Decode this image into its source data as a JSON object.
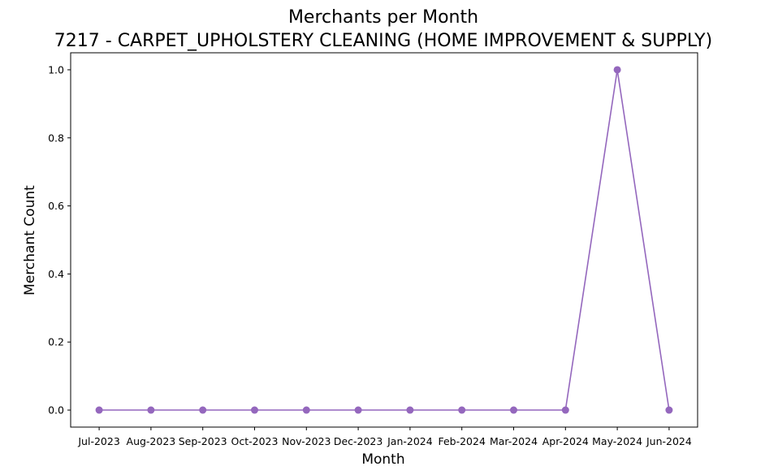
{
  "chart_data": {
    "type": "line",
    "title": "Merchants per Month",
    "subtitle": "7217 - CARPET_UPHOLSTERY CLEANING (HOME IMPROVEMENT & SUPPLY)",
    "xlabel": "Month",
    "ylabel": "Merchant Count",
    "categories": [
      "Jul-2023",
      "Aug-2023",
      "Sep-2023",
      "Oct-2023",
      "Nov-2023",
      "Dec-2023",
      "Jan-2024",
      "Feb-2024",
      "Mar-2024",
      "Apr-2024",
      "May-2024",
      "Jun-2024"
    ],
    "series": [
      {
        "values": [
          0,
          0,
          0,
          0,
          0,
          0,
          0,
          0,
          0,
          0,
          1,
          0
        ],
        "color": "#9467bd",
        "marker": "circle"
      }
    ],
    "ylim": [
      -0.05,
      1.05
    ],
    "yticks": [
      0.0,
      0.2,
      0.4,
      0.6,
      0.8,
      1.0
    ],
    "ytick_labels": [
      "0.0",
      "0.2",
      "0.4",
      "0.6",
      "0.8",
      "1.0"
    ],
    "grid": false,
    "legend": "none"
  }
}
